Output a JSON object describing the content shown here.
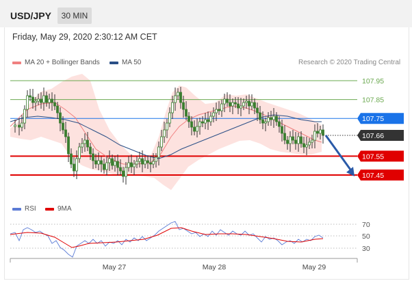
{
  "header": {
    "symbol": "USD/JPY",
    "interval": "30 MIN"
  },
  "datetime": "Friday, May 29, 2020 2:30:12 AM CET",
  "legend": {
    "ma20_label": "MA 20 + Bollinger Bands",
    "ma20_color": "#f08080",
    "ma50_label": "MA 50",
    "ma50_color": "#2a4f86",
    "credit": "Research © 2020 Trading Central"
  },
  "price_levels": [
    {
      "value": "107.95",
      "type": "resistance",
      "color": "#6aa84f"
    },
    {
      "value": "107.85",
      "type": "resistance",
      "color": "#6aa84f"
    },
    {
      "value": "107.75",
      "type": "pivot",
      "color": "#1a73e8"
    },
    {
      "value": "107.66",
      "type": "last",
      "color": "#333333"
    },
    {
      "value": "107.55",
      "type": "target",
      "color": "#e00000"
    },
    {
      "value": "107.45",
      "type": "target",
      "color": "#e00000"
    }
  ],
  "rsi": {
    "rsi_label": "RSI",
    "rsi_color": "#5b7bd5",
    "ma_label": "9MA",
    "ma_color": "#e00000",
    "levels": [
      "70",
      "50",
      "30"
    ]
  },
  "x_axis": {
    "labels": [
      "May 27",
      "May 28",
      "May 29"
    ]
  },
  "colors": {
    "bull": "#3a7d2f",
    "bear": "#3a7d2f",
    "band_fill": "#fde0dd",
    "arrow": "#2a5aa8"
  }
}
